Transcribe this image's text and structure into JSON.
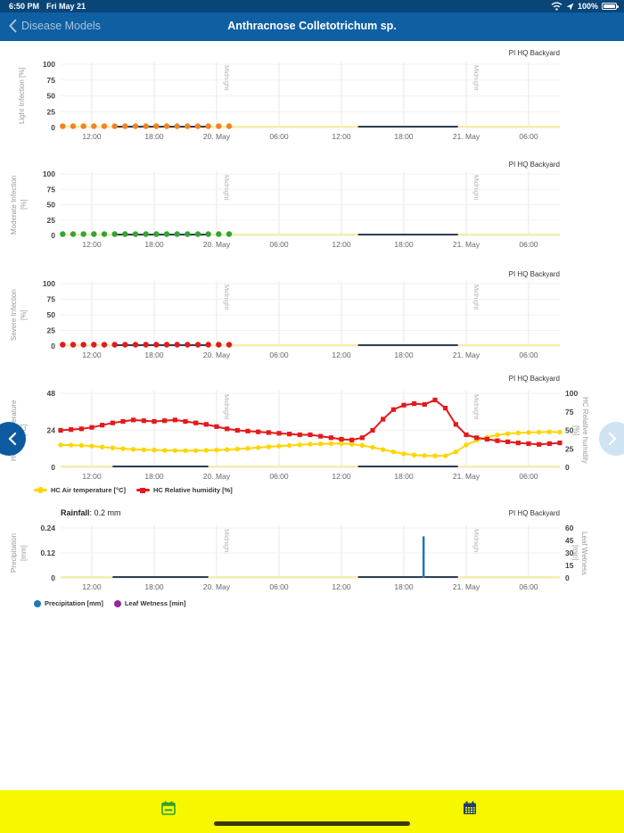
{
  "status_bar": {
    "time": "6:50 PM",
    "date": "Fri May 21",
    "battery": "100%"
  },
  "nav": {
    "back": "Disease Models",
    "title": "Anthracnose Colletotrichum sp."
  },
  "x_axis": {
    "span_hours": 48,
    "ticks": [
      {
        "h": 3,
        "label": "12:00"
      },
      {
        "h": 9,
        "label": "18:00"
      },
      {
        "h": 15,
        "label": "20. May"
      },
      {
        "h": 21,
        "label": "06:00"
      },
      {
        "h": 27,
        "label": "12:00"
      },
      {
        "h": 33,
        "label": "18:00"
      },
      {
        "h": 39,
        "label": "21. May"
      },
      {
        "h": 45,
        "label": "06:00"
      }
    ],
    "midnights": [
      15,
      39
    ],
    "midnight_label": "Midnight"
  },
  "chart_data": [
    {
      "type": "scatter",
      "station": "PI HQ Backyard",
      "ylabel_lines": [
        "Light Infection [%]"
      ],
      "yticks": [
        0,
        25,
        50,
        75,
        100
      ],
      "ylim": [
        0,
        100
      ],
      "series": [
        {
          "name": "baseline",
          "color": "#f3f0a6",
          "segments": [
            [
              0,
              48
            ]
          ]
        },
        {
          "name": "model zero line",
          "color": "#2e4053",
          "segments": [
            [
              5,
              14.2
            ],
            [
              28.6,
              38.2
            ]
          ]
        },
        {
          "name": "Light Infection [%]",
          "marker": "circle",
          "color": "#f5821f",
          "hours": [
            0.2,
            1.2,
            2.2,
            3.2,
            4.2,
            5.2,
            6.2,
            7.2,
            8.2,
            9.2,
            10.2,
            11.2,
            12.2,
            13.2,
            14.2,
            15.2,
            16.2
          ],
          "values": [
            0,
            0,
            0,
            0,
            0,
            0,
            0,
            0,
            0,
            0,
            0,
            0,
            0,
            0,
            0,
            0,
            0
          ]
        }
      ]
    },
    {
      "type": "scatter",
      "station": "PI HQ Backyard",
      "ylabel_lines": [
        "Moderate Infection",
        "[%]"
      ],
      "yticks": [
        0,
        25,
        50,
        75,
        100
      ],
      "ylim": [
        0,
        100
      ],
      "series": [
        {
          "name": "baseline",
          "color": "#f3f0a6",
          "segments": [
            [
              0,
              48
            ]
          ]
        },
        {
          "name": "model zero line",
          "color": "#2e4053",
          "segments": [
            [
              5,
              14.2
            ],
            [
              28.6,
              38.2
            ]
          ]
        },
        {
          "name": "Moderate Infection [%]",
          "marker": "circle",
          "color": "#33a532",
          "hours": [
            0.2,
            1.2,
            2.2,
            3.2,
            4.2,
            5.2,
            6.2,
            7.2,
            8.2,
            9.2,
            10.2,
            11.2,
            12.2,
            13.2,
            14.2,
            15.2,
            16.2
          ],
          "values": [
            0,
            0,
            0,
            0,
            0,
            0,
            0,
            0,
            0,
            0,
            0,
            0,
            0,
            0,
            0,
            0,
            0
          ]
        }
      ]
    },
    {
      "type": "scatter",
      "station": "PI HQ Backyard",
      "ylabel_lines": [
        "Severe Infection",
        "[%]"
      ],
      "yticks": [
        0,
        25,
        50,
        75,
        100
      ],
      "ylim": [
        0,
        100
      ],
      "series": [
        {
          "name": "baseline",
          "color": "#f3f0a6",
          "segments": [
            [
              0,
              48
            ]
          ]
        },
        {
          "name": "model zero line",
          "color": "#2e4053",
          "segments": [
            [
              5,
              14.2
            ],
            [
              28.6,
              38.2
            ]
          ]
        },
        {
          "name": "Severe Infection [%]",
          "marker": "circle",
          "color": "#e31a1c",
          "hours": [
            0.2,
            1.2,
            2.2,
            3.2,
            4.2,
            5.2,
            6.2,
            7.2,
            8.2,
            9.2,
            10.2,
            11.2,
            12.2,
            13.2,
            14.2,
            15.2,
            16.2
          ],
          "values": [
            0,
            0,
            0,
            0,
            0,
            0,
            0,
            0,
            0,
            0,
            0,
            0,
            0,
            0,
            0,
            0,
            0
          ]
        }
      ]
    },
    {
      "type": "line",
      "station": "PI HQ Backyard",
      "ylabel_lines": [
        "HC Air temperature",
        "[°C]"
      ],
      "yticks": [
        0,
        24,
        48
      ],
      "ylim": [
        0,
        48
      ],
      "right_axis": {
        "label_lines": [
          "HC Relative humidity",
          "[%]"
        ],
        "ticks": [
          0,
          25,
          50,
          75,
          100
        ],
        "lim": [
          0,
          100
        ]
      },
      "series": [
        {
          "name": "baseline",
          "color": "#f3f0a6",
          "segments": [
            [
              0,
              48
            ]
          ]
        },
        {
          "name": "model zero line",
          "color": "#2e4053",
          "segments": [
            [
              5,
              14.2
            ],
            [
              28.6,
              38.2
            ]
          ]
        },
        {
          "name": "HC Air temperature [°C]",
          "axis": "left",
          "marker": "circle",
          "color": "#ffd500",
          "values": [
            14.5,
            14.4,
            14.2,
            13.8,
            13.2,
            12.6,
            12.1,
            11.7,
            11.4,
            11.2,
            11,
            10.9,
            10.8,
            10.9,
            11,
            11.2,
            11.5,
            11.9,
            12.3,
            12.8,
            13.3,
            13.8,
            14.2,
            14.6,
            15,
            15.2,
            15.4,
            15.4,
            15,
            14.2,
            13,
            11.5,
            10,
            8.8,
            8,
            7.6,
            7.4,
            7.5,
            10,
            14.5,
            17.5,
            19.5,
            21,
            21.8,
            22.3,
            22.6,
            22.8,
            23,
            22.8
          ]
        },
        {
          "name": "HC Relative humidity [%]",
          "axis": "right",
          "marker": "square",
          "color": "#e31a1c",
          "values": [
            50,
            51,
            52,
            54,
            57,
            60,
            62,
            64,
            63,
            62,
            63,
            64,
            62,
            60,
            58,
            55,
            52,
            50,
            49,
            48,
            47,
            46,
            45,
            44,
            44,
            42,
            40,
            38,
            37,
            40,
            50,
            65,
            78,
            84,
            86,
            85,
            91,
            80,
            58,
            44,
            40,
            38,
            36,
            34.5,
            33,
            32,
            31,
            32,
            33
          ]
        }
      ],
      "legend": [
        {
          "label": "HC Air temperature [°C]",
          "color": "#ffd500",
          "marker": "line-circle"
        },
        {
          "label": "HC Relative humidity [%]",
          "color": "#e31a1c",
          "marker": "line-square"
        }
      ]
    },
    {
      "type": "bar",
      "station": "PI HQ Backyard",
      "title_label": "Rainfall",
      "title_value": ": 0.2 mm",
      "ylabel_lines": [
        "Precipitation",
        "[mm]"
      ],
      "yticks": [
        0,
        0.12,
        0.24
      ],
      "ylim": [
        0,
        0.24
      ],
      "right_axis": {
        "label_lines": [
          "Leaf Wetness",
          "[min]"
        ],
        "ticks": [
          0,
          15,
          30,
          45,
          60
        ],
        "lim": [
          0,
          60
        ]
      },
      "series": [
        {
          "name": "leaf wetness zero",
          "color": "#c3dcef",
          "segments": [
            [
              0,
              48
            ]
          ]
        },
        {
          "name": "baseline",
          "color": "#f3f0a6",
          "segments": [
            [
              0,
              48
            ]
          ]
        },
        {
          "name": "model zero line",
          "color": "#2e4053",
          "segments": [
            [
              5,
              14.2
            ],
            [
              28.6,
              38.2
            ]
          ]
        },
        {
          "name": "Precipitation [mm]",
          "bar": true,
          "color": "#2077b4",
          "h": 34.9,
          "value": 0.2
        }
      ],
      "legend": [
        {
          "label": "Precipitation [mm]",
          "color": "#2077b4",
          "marker": "dot"
        },
        {
          "label": "Leaf Wetness [min]",
          "color": "#9b259b",
          "marker": "dot"
        }
      ]
    }
  ]
}
